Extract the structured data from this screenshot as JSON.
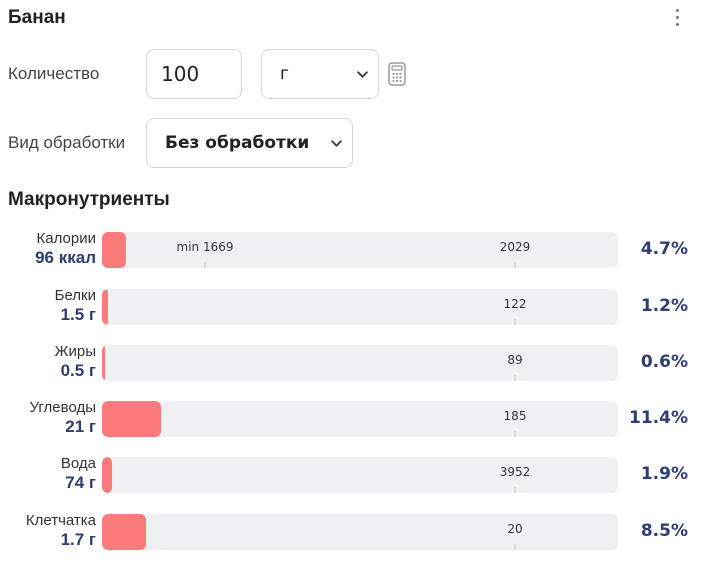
{
  "title": "Банан",
  "quantity": {
    "label": "Количество",
    "value": "100",
    "unit": "г"
  },
  "processing": {
    "label": "Вид обработки",
    "value": "Без обработки"
  },
  "section_title": "Макронутриенты",
  "colors": {
    "bar_fill": "#fb7b7c",
    "track": "#f0f0f2",
    "value_text": "#2e3d74"
  },
  "icons": [
    "more-vert-icon",
    "calculator-icon",
    "chevron-down-icon"
  ],
  "macros": [
    {
      "name": "Калории",
      "value": "96 ккал",
      "min_label": "min 1669",
      "target_label": "2029",
      "percent_label": "4.7%",
      "percent": 4.7
    },
    {
      "name": "Белки",
      "value": "1.5 г",
      "target_label": "122",
      "percent_label": "1.2%",
      "percent": 1.2
    },
    {
      "name": "Жиры",
      "value": "0.5 г",
      "target_label": "89",
      "percent_label": "0.6%",
      "percent": 0.6
    },
    {
      "name": "Углеводы",
      "value": "21 г",
      "target_label": "185",
      "percent_label": "11.4%",
      "percent": 11.4
    },
    {
      "name": "Вода",
      "value": "74 г",
      "target_label": "3952",
      "percent_label": "1.9%",
      "percent": 1.9
    },
    {
      "name": "Клетчатка",
      "value": "1.7 г",
      "target_label": "20",
      "percent_label": "8.5%",
      "percent": 8.5
    }
  ]
}
